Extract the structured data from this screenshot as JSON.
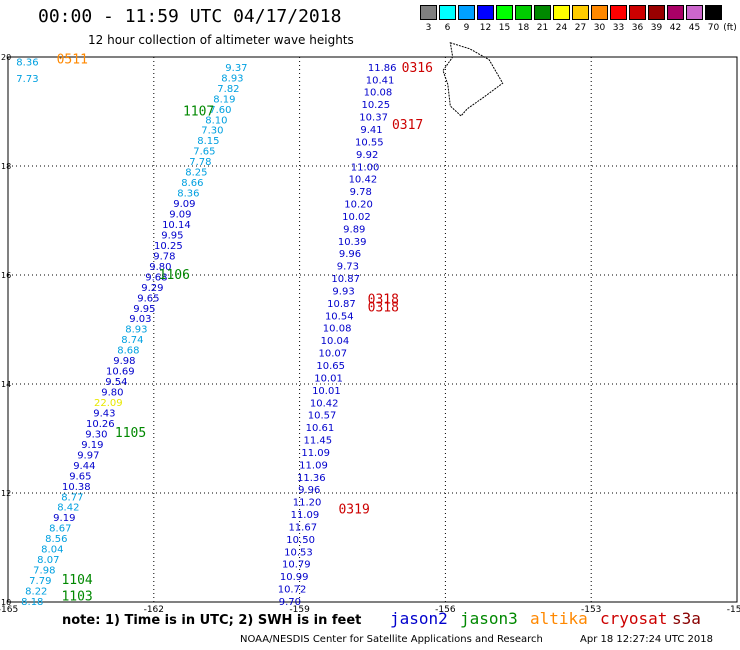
{
  "title": "00:00 - 11:59 UTC 04/17/2018",
  "subtitle": "12 hour collection of altimeter wave heights",
  "legend": {
    "units": "(ft)",
    "bins": [
      {
        "label": "3",
        "color": "#7f7f7f"
      },
      {
        "label": "6",
        "color": "#00ffff"
      },
      {
        "label": "9",
        "color": "#00a0ff"
      },
      {
        "label": "12",
        "color": "#0000ff"
      },
      {
        "label": "15",
        "color": "#00ff00"
      },
      {
        "label": "18",
        "color": "#00cc00"
      },
      {
        "label": "21",
        "color": "#008800"
      },
      {
        "label": "24",
        "color": "#ffff00"
      },
      {
        "label": "27",
        "color": "#ffcc00"
      },
      {
        "label": "30",
        "color": "#ff8800"
      },
      {
        "label": "33",
        "color": "#ff0000"
      },
      {
        "label": "36",
        "color": "#cc0000"
      },
      {
        "label": "39",
        "color": "#990000"
      },
      {
        "label": "42",
        "color": "#aa0066"
      },
      {
        "label": "45",
        "color": "#cc66cc"
      },
      {
        "label": "70",
        "color": "#000000"
      }
    ]
  },
  "axes": {
    "lon_ticks": [
      "-165",
      "-162",
      "-159",
      "-156",
      "-153",
      "-150"
    ],
    "lat_ticks": [
      "20",
      "18",
      "16",
      "14",
      "12",
      "10"
    ],
    "lon_range": [
      -165,
      -150
    ],
    "lat_range": [
      10,
      20
    ]
  },
  "colors": {
    "jason2": "#0000cc",
    "jason3": "#008800",
    "altika": "#ff8800",
    "cryosat": "#cc0000",
    "light": "#00a0e0",
    "yellow": "#e8e800"
  },
  "tracks": [
    {
      "name": "west-track",
      "lon_start": -160.3,
      "lat_start": 19.8,
      "lon_end": -164.5,
      "lat_end": 10.0,
      "values": [
        {
          "v": "9.37",
          "c": "light"
        },
        {
          "v": "8.93",
          "c": "light"
        },
        {
          "v": "7.82",
          "c": "light"
        },
        {
          "v": "8.19",
          "c": "light"
        },
        {
          "v": "7.60",
          "c": "light"
        },
        {
          "v": "8.10",
          "c": "light"
        },
        {
          "v": "7.30",
          "c": "light"
        },
        {
          "v": "8.15",
          "c": "light"
        },
        {
          "v": "7.65",
          "c": "light"
        },
        {
          "v": "7.78",
          "c": "light"
        },
        {
          "v": "8.25",
          "c": "light"
        },
        {
          "v": "8.66",
          "c": "light"
        },
        {
          "v": "8.36",
          "c": "light"
        },
        {
          "v": "9.09",
          "c": "jason2"
        },
        {
          "v": "9.09",
          "c": "jason2"
        },
        {
          "v": "10.14",
          "c": "jason2"
        },
        {
          "v": "9.95",
          "c": "jason2"
        },
        {
          "v": "10.25",
          "c": "jason2"
        },
        {
          "v": "9.78",
          "c": "jason2"
        },
        {
          "v": "9.80",
          "c": "jason2"
        },
        {
          "v": "9.68",
          "c": "jason2"
        },
        {
          "v": "9.29",
          "c": "jason2"
        },
        {
          "v": "9.65",
          "c": "jason2"
        },
        {
          "v": "9.95",
          "c": "jason2"
        },
        {
          "v": "9.03",
          "c": "jason2"
        },
        {
          "v": "8.93",
          "c": "light"
        },
        {
          "v": "8.74",
          "c": "light"
        },
        {
          "v": "8.68",
          "c": "light"
        },
        {
          "v": "9.98",
          "c": "jason2"
        },
        {
          "v": "10.69",
          "c": "jason2"
        },
        {
          "v": "9.54",
          "c": "jason2"
        },
        {
          "v": "9.80",
          "c": "jason2"
        },
        {
          "v": "22.09",
          "c": "yellow"
        },
        {
          "v": "9.43",
          "c": "jason2"
        },
        {
          "v": "10.26",
          "c": "jason2"
        },
        {
          "v": "9.30",
          "c": "jason2"
        },
        {
          "v": "9.19",
          "c": "jason2"
        },
        {
          "v": "9.97",
          "c": "jason2"
        },
        {
          "v": "9.44",
          "c": "jason2"
        },
        {
          "v": "9.65",
          "c": "jason2"
        },
        {
          "v": "10.38",
          "c": "jason2"
        },
        {
          "v": "8.77",
          "c": "light"
        },
        {
          "v": "8.42",
          "c": "light"
        },
        {
          "v": "9.19",
          "c": "jason2"
        },
        {
          "v": "8.67",
          "c": "light"
        },
        {
          "v": "8.56",
          "c": "light"
        },
        {
          "v": "8.04",
          "c": "light"
        },
        {
          "v": "8.07",
          "c": "light"
        },
        {
          "v": "7.98",
          "c": "light"
        },
        {
          "v": "7.79",
          "c": "light"
        },
        {
          "v": "8.22",
          "c": "light"
        },
        {
          "v": "8.18",
          "c": "light"
        }
      ]
    },
    {
      "name": "east-track",
      "lon_start": -157.3,
      "lat_start": 19.8,
      "lon_end": -159.2,
      "lat_end": 10.0,
      "values": [
        {
          "v": "11.86",
          "c": "jason2"
        },
        {
          "v": "10.41",
          "c": "jason2"
        },
        {
          "v": "10.08",
          "c": "jason2"
        },
        {
          "v": "10.25",
          "c": "jason2"
        },
        {
          "v": "10.37",
          "c": "jason2"
        },
        {
          "v": "9.41",
          "c": "jason2"
        },
        {
          "v": "10.55",
          "c": "jason2"
        },
        {
          "v": "9.92",
          "c": "jason2"
        },
        {
          "v": "11.00",
          "c": "jason2"
        },
        {
          "v": "10.42",
          "c": "jason2"
        },
        {
          "v": "9.78",
          "c": "jason2"
        },
        {
          "v": "10.20",
          "c": "jason2"
        },
        {
          "v": "10.02",
          "c": "jason2"
        },
        {
          "v": "9.89",
          "c": "jason2"
        },
        {
          "v": "10.39",
          "c": "jason2"
        },
        {
          "v": "9.96",
          "c": "jason2"
        },
        {
          "v": "9.73",
          "c": "jason2"
        },
        {
          "v": "10.87",
          "c": "jason2"
        },
        {
          "v": "9.93",
          "c": "jason2"
        },
        {
          "v": "10.87",
          "c": "jason2"
        },
        {
          "v": "10.54",
          "c": "jason2"
        },
        {
          "v": "10.08",
          "c": "jason2"
        },
        {
          "v": "10.04",
          "c": "jason2"
        },
        {
          "v": "10.07",
          "c": "jason2"
        },
        {
          "v": "10.65",
          "c": "jason2"
        },
        {
          "v": "10.01",
          "c": "jason2"
        },
        {
          "v": "10.01",
          "c": "jason2"
        },
        {
          "v": "10.42",
          "c": "jason2"
        },
        {
          "v": "10.57",
          "c": "jason2"
        },
        {
          "v": "10.61",
          "c": "jason2"
        },
        {
          "v": "11.45",
          "c": "jason2"
        },
        {
          "v": "11.09",
          "c": "jason2"
        },
        {
          "v": "11.09",
          "c": "jason2"
        },
        {
          "v": "11.36",
          "c": "jason2"
        },
        {
          "v": "9.96",
          "c": "jason2"
        },
        {
          "v": "11.20",
          "c": "jason2"
        },
        {
          "v": "11.09",
          "c": "jason2"
        },
        {
          "v": "11.67",
          "c": "jason2"
        },
        {
          "v": "10.50",
          "c": "jason2"
        },
        {
          "v": "10.53",
          "c": "jason2"
        },
        {
          "v": "10.79",
          "c": "jason2"
        },
        {
          "v": "10.99",
          "c": "jason2"
        },
        {
          "v": "10.72",
          "c": "jason2"
        },
        {
          "v": "9.70",
          "c": "jason2"
        }
      ]
    },
    {
      "name": "corner-track",
      "lon_start": -164.6,
      "lat_start": 19.9,
      "lon_end": -164.6,
      "lat_end": 19.6,
      "values": [
        {
          "v": "8.36",
          "c": "light"
        },
        {
          "v": "7.73",
          "c": "light"
        }
      ]
    }
  ],
  "time_labels": [
    {
      "text": "0511",
      "lon": -164.0,
      "lat": 19.95,
      "c": "altika"
    },
    {
      "text": "1107",
      "lon": -161.4,
      "lat": 19.0,
      "c": "jason3"
    },
    {
      "text": "1106",
      "lon": -161.9,
      "lat": 16.0,
      "c": "jason3"
    },
    {
      "text": "1105",
      "lon": -162.8,
      "lat": 13.1,
      "c": "jason3"
    },
    {
      "text": "1104",
      "lon": -163.9,
      "lat": 10.4,
      "c": "jason3"
    },
    {
      "text": "1103",
      "lon": -163.9,
      "lat": 10.1,
      "c": "jason3"
    },
    {
      "text": "0316",
      "lon": -156.9,
      "lat": 19.8,
      "c": "cryosat"
    },
    {
      "text": "0317",
      "lon": -157.1,
      "lat": 18.75,
      "c": "cryosat"
    },
    {
      "text": "0318",
      "lon": -157.6,
      "lat": 15.55,
      "c": "cryosat"
    },
    {
      "text": "0318",
      "lon": -157.6,
      "lat": 15.4,
      "c": "cryosat"
    },
    {
      "text": "0319",
      "lon": -158.2,
      "lat": 11.7,
      "c": "cryosat"
    }
  ],
  "note": "note: 1) Time is in UTC; 2) SWH is in feet",
  "satellites": [
    {
      "name": "jason2",
      "color": "#0000cc"
    },
    {
      "name": "jason3",
      "color": "#008800"
    },
    {
      "name": "altika",
      "color": "#ff8800"
    },
    {
      "name": "cryosat",
      "color": "#cc0000"
    },
    {
      "name": "s3a",
      "color": "#880000"
    }
  ],
  "credit": "NOAA/NESDIS Center for Satellite Applications and Research",
  "stamp": "Apr 18 12:27:24 UTC 2018"
}
